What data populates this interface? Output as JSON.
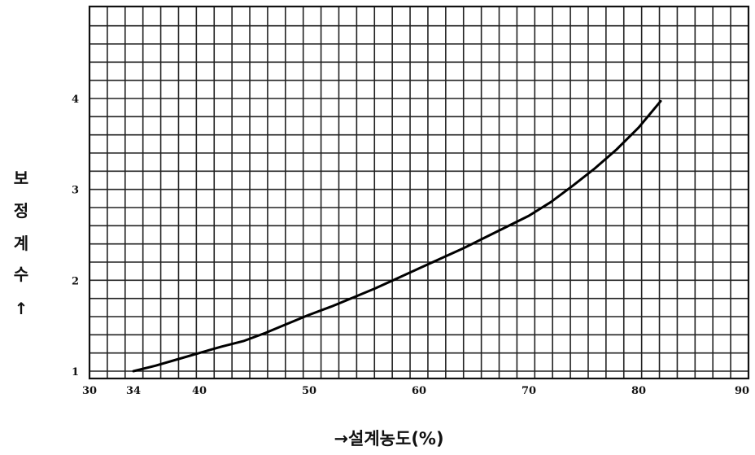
{
  "chart_data": {
    "type": "line",
    "title": "",
    "xlabel": "→설계농도(%)",
    "ylabel": [
      "보",
      "정",
      "계",
      "수",
      "↑"
    ],
    "xlim": [
      30,
      90
    ],
    "ylim": [
      1,
      4.0
    ],
    "x_ticks": [
      "30",
      "34",
      "40",
      "50",
      "60",
      "70",
      "80",
      "90"
    ],
    "y_ticks": [
      "1",
      "2",
      "3",
      "4"
    ],
    "grid": true,
    "series": [
      {
        "x": [
          34,
          36,
          38,
          40,
          42,
          44,
          46,
          48,
          50,
          52,
          54,
          56,
          58,
          60,
          62,
          64,
          66,
          68,
          70,
          72,
          74,
          76,
          78,
          80,
          82
        ],
        "y": [
          1.0,
          1.06,
          1.13,
          1.2,
          1.27,
          1.33,
          1.42,
          1.52,
          1.62,
          1.71,
          1.81,
          1.91,
          2.02,
          2.13,
          2.24,
          2.35,
          2.47,
          2.59,
          2.71,
          2.86,
          3.04,
          3.23,
          3.44,
          3.68,
          3.97
        ]
      }
    ]
  }
}
